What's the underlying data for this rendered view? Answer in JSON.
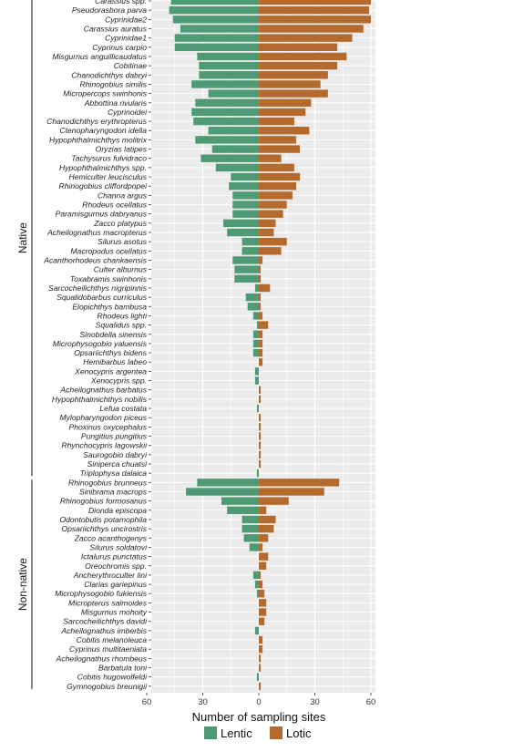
{
  "chart_data": {
    "type": "bar",
    "orientation": "horizontal-diverging",
    "xlabel": "Number of sampling sites",
    "x_ticks": [
      "60",
      "30",
      "0",
      "30",
      "60"
    ],
    "xlim": [
      -60,
      60
    ],
    "grid": true,
    "legend_position": "bottom",
    "series": [
      {
        "name": "Lentic",
        "color": "#4e9a74",
        "direction": "left"
      },
      {
        "name": "Lotic",
        "color": "#b46a2c",
        "direction": "right"
      }
    ],
    "groups": [
      {
        "label": "Native",
        "rows": [
          {
            "species": "Carassius spp.",
            "lentic": 47,
            "lotic": 60
          },
          {
            "species": "Pseudorasbora parva",
            "lentic": 48,
            "lotic": 59
          },
          {
            "species": "Cyprinidae2",
            "lentic": 46,
            "lotic": 60
          },
          {
            "species": "Carassius auratus",
            "lentic": 42,
            "lotic": 56
          },
          {
            "species": "Cyprinidae1",
            "lentic": 45,
            "lotic": 50
          },
          {
            "species": "Cyprinus carpio",
            "lentic": 45,
            "lotic": 42
          },
          {
            "species": "Misgurnus anguillicaudatus",
            "lentic": 33,
            "lotic": 47
          },
          {
            "species": "Cobitinae",
            "lentic": 32,
            "lotic": 42
          },
          {
            "species": "Chanodichthys dabryi",
            "lentic": 32,
            "lotic": 37
          },
          {
            "species": "Rhinogobius similis",
            "lentic": 36,
            "lotic": 33
          },
          {
            "species": "Micropercops swinhonis",
            "lentic": 27,
            "lotic": 37
          },
          {
            "species": "Abbottina rivularis",
            "lentic": 34,
            "lotic": 28
          },
          {
            "species": "Cyprinoidei",
            "lentic": 36,
            "lotic": 25
          },
          {
            "species": "Chanodichthys erythropterus",
            "lentic": 35,
            "lotic": 19
          },
          {
            "species": "Ctenopharyngodon idella",
            "lentic": 27,
            "lotic": 27
          },
          {
            "species": "Hypophthalmichthys molitrix",
            "lentic": 34,
            "lotic": 20
          },
          {
            "species": "Oryzias latipes",
            "lentic": 25,
            "lotic": 22
          },
          {
            "species": "Tachysurus fulvidraco",
            "lentic": 31,
            "lotic": 12
          },
          {
            "species": "Hypophthalmichthys spp.",
            "lentic": 23,
            "lotic": 19
          },
          {
            "species": "Hemiculter leucisculus",
            "lentic": 15,
            "lotic": 22
          },
          {
            "species": "Rhinogobius cliffordpopei",
            "lentic": 16,
            "lotic": 20
          },
          {
            "species": "Channa argus",
            "lentic": 14,
            "lotic": 18
          },
          {
            "species": "Rhodeus ocellatus",
            "lentic": 14,
            "lotic": 15
          },
          {
            "species": "Paramisgurnus dabryanus",
            "lentic": 14,
            "lotic": 13
          },
          {
            "species": "Zacco platypus",
            "lentic": 19,
            "lotic": 9
          },
          {
            "species": "Acheilognathus macropterus",
            "lentic": 17,
            "lotic": 8
          },
          {
            "species": "Silurus asotus",
            "lentic": 9,
            "lotic": 15
          },
          {
            "species": "Macropodus ocellatus",
            "lentic": 9,
            "lotic": 12
          },
          {
            "species": "Acanthorhodeus chankaensis",
            "lentic": 14,
            "lotic": 2
          },
          {
            "species": "Culter alburnus",
            "lentic": 13,
            "lotic": 1
          },
          {
            "species": "Toxabramis swinhonis",
            "lentic": 13,
            "lotic": 1
          },
          {
            "species": "Sarcocheilichthys nigripinnis",
            "lentic": 2,
            "lotic": 6
          },
          {
            "species": "Squalidobarbus curriculus",
            "lentic": 7,
            "lotic": 1
          },
          {
            "species": "Elopichthys bambusa",
            "lentic": 6,
            "lotic": 1
          },
          {
            "species": "Rhodeus lighti",
            "lentic": 3,
            "lotic": 2
          },
          {
            "species": "Squalidus spp.",
            "lentic": 1,
            "lotic": 5
          },
          {
            "species": "Sinobdella sinensis",
            "lentic": 3,
            "lotic": 2
          },
          {
            "species": "Microphysogobio yaluensis",
            "lentic": 3,
            "lotic": 2
          },
          {
            "species": "Opsariichthys bidens",
            "lentic": 3,
            "lotic": 2
          },
          {
            "species": "Hemibarbus labeo",
            "lentic": 0,
            "lotic": 2
          },
          {
            "species": "Xenocypris argentea",
            "lentic": 2,
            "lotic": 0
          },
          {
            "species": "Xenocypris spp.",
            "lentic": 2,
            "lotic": 0
          },
          {
            "species": "Acheilognathus barbatus",
            "lentic": 0,
            "lotic": 1
          },
          {
            "species": "Hypophthalmichthys nobilis",
            "lentic": 0,
            "lotic": 1
          },
          {
            "species": "Lefua costata",
            "lentic": 1,
            "lotic": 0
          },
          {
            "species": "Mylopharyngodon piceus",
            "lentic": 0,
            "lotic": 1
          },
          {
            "species": "Phoxinus oxycephalus",
            "lentic": 0,
            "lotic": 1
          },
          {
            "species": "Pungitius pungitius",
            "lentic": 0,
            "lotic": 1
          },
          {
            "species": "Rhynchocypris lagowskii",
            "lentic": 0,
            "lotic": 1
          },
          {
            "species": "Saurogobio dabryi",
            "lentic": 0,
            "lotic": 1
          },
          {
            "species": "Siniperca chuatsi",
            "lentic": 0,
            "lotic": 1
          },
          {
            "species": "Triplophysa dalaica",
            "lentic": 1,
            "lotic": 0
          }
        ]
      },
      {
        "label": "Non-native",
        "rows": [
          {
            "species": "Rhinogobius brunneus",
            "lentic": 33,
            "lotic": 43
          },
          {
            "species": "Sinibrama macrops",
            "lentic": 39,
            "lotic": 35
          },
          {
            "species": "Rhinogobius formosanus",
            "lentic": 20,
            "lotic": 16
          },
          {
            "species": "Dionda episcopa",
            "lentic": 17,
            "lotic": 4
          },
          {
            "species": "Odontobutis potamophila",
            "lentic": 9,
            "lotic": 9
          },
          {
            "species": "Opsariichthys uncirostris",
            "lentic": 9,
            "lotic": 8
          },
          {
            "species": "Zacco acanthogenys",
            "lentic": 8,
            "lotic": 5
          },
          {
            "species": "Silurus soldatovi",
            "lentic": 5,
            "lotic": 2
          },
          {
            "species": "Ictalurus punctatus",
            "lentic": 0,
            "lotic": 5
          },
          {
            "species": "Oreochromis spp.",
            "lentic": 0,
            "lotic": 4
          },
          {
            "species": "Ancherythroculter lini",
            "lentic": 3,
            "lotic": 1
          },
          {
            "species": "Clarias gariepinus",
            "lentic": 2,
            "lotic": 2
          },
          {
            "species": "Microphysogobio fukiensis",
            "lentic": 1,
            "lotic": 3
          },
          {
            "species": "Micropterus salmoides",
            "lentic": 0,
            "lotic": 4
          },
          {
            "species": "Misgurnus mohoity",
            "lentic": 0,
            "lotic": 4
          },
          {
            "species": "Sarcocheilichthys davidi",
            "lentic": 0,
            "lotic": 3
          },
          {
            "species": "Acheilognathus imberbis",
            "lentic": 2,
            "lotic": 0
          },
          {
            "species": "Cobitis melanoleuca",
            "lentic": 0,
            "lotic": 2
          },
          {
            "species": "Cyprinus multitaeniata",
            "lentic": 0,
            "lotic": 2
          },
          {
            "species": "Acheilognathus rhombeus",
            "lentic": 0,
            "lotic": 1
          },
          {
            "species": "Barbatula toni",
            "lentic": 0,
            "lotic": 1
          },
          {
            "species": "Cobitis hugowolfeldi",
            "lentic": 1,
            "lotic": 0
          },
          {
            "species": "Gymnogobius breunigii",
            "lentic": 0,
            "lotic": 1
          }
        ]
      }
    ]
  }
}
